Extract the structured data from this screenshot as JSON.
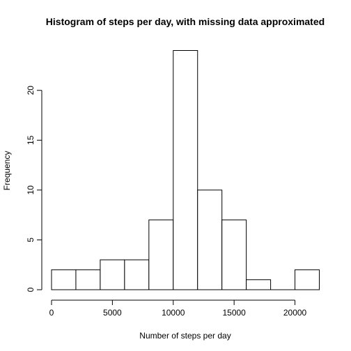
{
  "chart_data": {
    "type": "bar",
    "title": "Histogram of steps per day, with missing data approximated",
    "xlabel": "Number of steps per day",
    "ylabel": "Frequency",
    "bins": [
      {
        "from": 0,
        "to": 2000,
        "count": 2
      },
      {
        "from": 2000,
        "to": 4000,
        "count": 2
      },
      {
        "from": 4000,
        "to": 6000,
        "count": 3
      },
      {
        "from": 6000,
        "to": 8000,
        "count": 3
      },
      {
        "from": 8000,
        "to": 10000,
        "count": 7
      },
      {
        "from": 10000,
        "to": 12000,
        "count": 24
      },
      {
        "from": 12000,
        "to": 14000,
        "count": 10
      },
      {
        "from": 14000,
        "to": 16000,
        "count": 7
      },
      {
        "from": 16000,
        "to": 18000,
        "count": 1
      },
      {
        "from": 18000,
        "to": 20000,
        "count": 0
      },
      {
        "from": 20000,
        "to": 22000,
        "count": 2
      }
    ],
    "xlim": [
      0,
      22000
    ],
    "ylim": [
      0,
      24
    ],
    "x_ticks": [
      0,
      5000,
      10000,
      15000,
      20000
    ],
    "x_tick_labels": [
      "0",
      "5000",
      "10000",
      "15000",
      "20000"
    ],
    "y_ticks": [
      0,
      5,
      10,
      15,
      20
    ],
    "y_tick_labels": [
      "0",
      "5",
      "10",
      "15",
      "20"
    ],
    "bar_fill": "#ffffff",
    "bar_stroke": "#000000",
    "grid": false,
    "legend": "none"
  }
}
